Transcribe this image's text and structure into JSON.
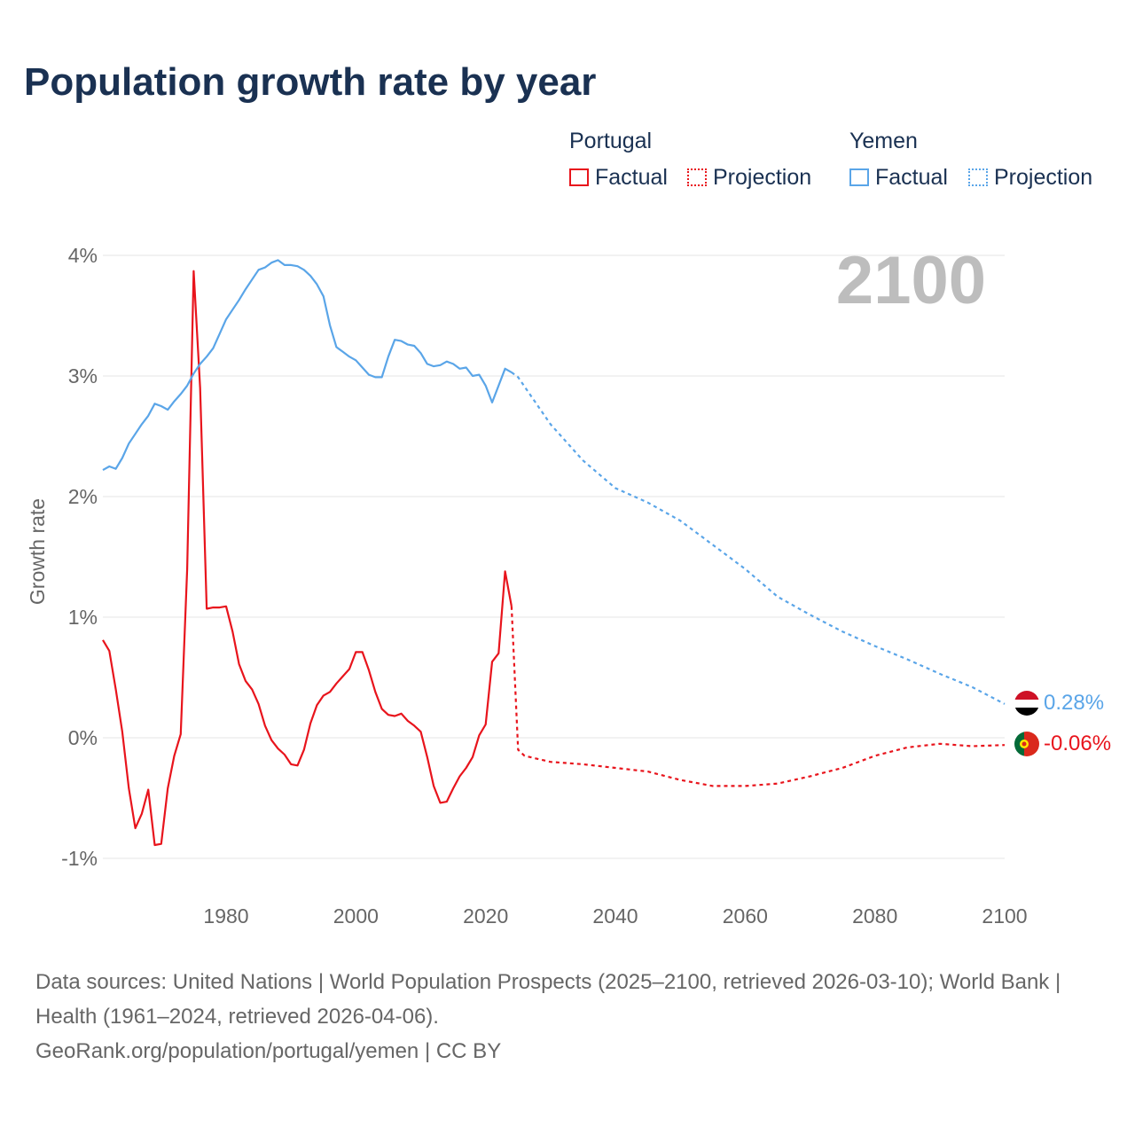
{
  "title": "Population growth rate by year",
  "legend": {
    "groups": [
      {
        "name": "Portugal",
        "factual": "Factual",
        "projection": "Projection",
        "color": "#e8141c"
      },
      {
        "name": "Yemen",
        "factual": "Factual",
        "projection": "Projection",
        "color": "#5aa5e8"
      }
    ]
  },
  "year_label": "2100",
  "end_labels": {
    "yemen": "0.28%",
    "portugal": "-0.06%"
  },
  "footer": {
    "sources": "Data sources: United Nations | World Population Prospects (2025–2100, retrieved 2026-03-10); World Bank | Health (1961–2024, retrieved 2026-04-06).",
    "credit": "GeoRank.org/population/portugal/yemen | CC BY"
  },
  "chart_data": {
    "type": "line",
    "title": "Population growth rate by year",
    "xlabel": "",
    "ylabel": "Growth rate",
    "xlim": [
      1961,
      2100
    ],
    "ylim": [
      -1.2,
      4.2
    ],
    "xticks": [
      1980,
      2000,
      2020,
      2040,
      2060,
      2080,
      2100
    ],
    "xtick_labels": [
      "1980",
      "2000",
      "2020",
      "2040",
      "2060",
      "2080",
      "2100"
    ],
    "yticks": [
      -1,
      0,
      1,
      2,
      3,
      4
    ],
    "ytick_labels": [
      "-1%",
      "0%",
      "1%",
      "2%",
      "3%",
      "4%"
    ],
    "series": [
      {
        "name": "Portugal Factual",
        "color": "#e8141c",
        "style": "solid",
        "x_start": 1961,
        "values": [
          0.81,
          0.72,
          0.4,
          0.05,
          -0.42,
          -0.75,
          -0.63,
          -0.43,
          -0.89,
          -0.88,
          -0.42,
          -0.15,
          0.03,
          1.4,
          3.87,
          2.9,
          1.07,
          1.08,
          1.08,
          1.09,
          0.88,
          0.61,
          0.47,
          0.4,
          0.28,
          0.1,
          -0.02,
          -0.09,
          -0.14,
          -0.22,
          -0.23,
          -0.1,
          0.12,
          0.27,
          0.35,
          0.38,
          0.45,
          0.51,
          0.57,
          0.71,
          0.71,
          0.56,
          0.38,
          0.24,
          0.19,
          0.18,
          0.2,
          0.14,
          0.1,
          0.05,
          -0.16,
          -0.4,
          -0.54,
          -0.53,
          -0.42,
          -0.32,
          -0.25,
          -0.16,
          0.02,
          0.11,
          0.63,
          0.7,
          1.38,
          1.09
        ]
      },
      {
        "name": "Portugal Projection",
        "color": "#e8141c",
        "style": "dotted",
        "x": [
          2024,
          2025,
          2026,
          2030,
          2035,
          2040,
          2045,
          2050,
          2055,
          2060,
          2065,
          2070,
          2075,
          2080,
          2085,
          2090,
          2095,
          2100
        ],
        "values": [
          1.09,
          -0.1,
          -0.15,
          -0.2,
          -0.22,
          -0.25,
          -0.28,
          -0.35,
          -0.4,
          -0.4,
          -0.38,
          -0.32,
          -0.25,
          -0.15,
          -0.08,
          -0.05,
          -0.07,
          -0.06
        ]
      },
      {
        "name": "Yemen Factual",
        "color": "#5aa5e8",
        "style": "solid",
        "x_start": 1961,
        "values": [
          2.22,
          2.25,
          2.23,
          2.32,
          2.44,
          2.52,
          2.6,
          2.67,
          2.77,
          2.75,
          2.72,
          2.79,
          2.85,
          2.92,
          3.02,
          3.1,
          3.16,
          3.23,
          3.35,
          3.47,
          3.55,
          3.63,
          3.72,
          3.8,
          3.88,
          3.9,
          3.94,
          3.96,
          3.92,
          3.92,
          3.91,
          3.88,
          3.83,
          3.76,
          3.66,
          3.42,
          3.24,
          3.2,
          3.16,
          3.13,
          3.07,
          3.01,
          2.99,
          2.99,
          3.16,
          3.3,
          3.29,
          3.26,
          3.25,
          3.19,
          3.1,
          3.08,
          3.09,
          3.12,
          3.1,
          3.06,
          3.07,
          3.0,
          3.01,
          2.92,
          2.78,
          2.92,
          3.06,
          3.03
        ]
      },
      {
        "name": "Yemen Projection",
        "color": "#5aa5e8",
        "style": "dotted",
        "x": [
          2024,
          2025,
          2030,
          2035,
          2040,
          2045,
          2050,
          2055,
          2060,
          2065,
          2070,
          2075,
          2080,
          2085,
          2090,
          2095,
          2100
        ],
        "values": [
          3.03,
          2.99,
          2.6,
          2.3,
          2.07,
          1.95,
          1.8,
          1.6,
          1.4,
          1.17,
          1.02,
          0.88,
          0.76,
          0.65,
          0.53,
          0.42,
          0.28
        ]
      }
    ]
  }
}
